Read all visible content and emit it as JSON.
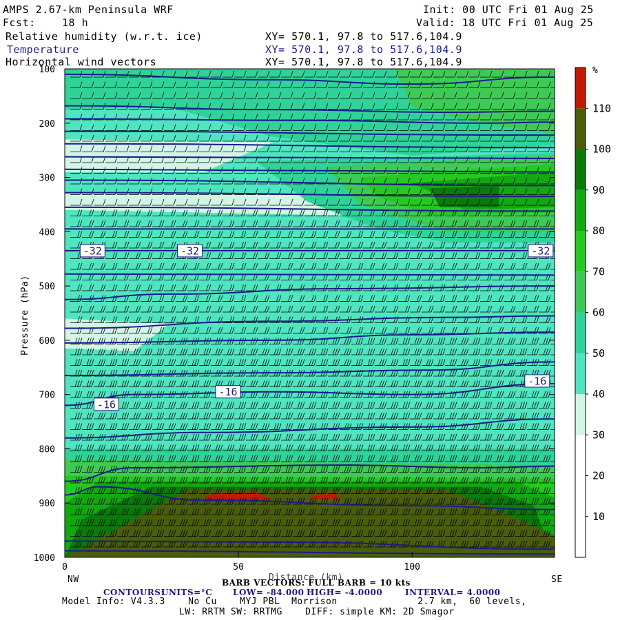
{
  "header": {
    "title": "AMPS 2.67-km Peninsula WRF",
    "init": "Init: 00 UTC Fri 01 Aug 25",
    "fcst_label": "Fcst:",
    "fcst_value": "18 h",
    "valid": "Valid: 18 UTC Fri 01 Aug 25"
  },
  "fields": [
    {
      "name": "Relative humidity (w.r.t. ice)",
      "xy": "XY= 570.1, 97.8 to 517.6,104.9"
    },
    {
      "name": "Temperature",
      "xy": "XY= 570.1, 97.8 to 517.6,104.9"
    },
    {
      "name": "Horizontal wind vectors",
      "xy": "XY= 570.1, 97.8 to 517.6,104.9"
    }
  ],
  "footer": {
    "barb_note": "BARB VECTORS: FULL BARB = 10 kts",
    "distance_label": "Distance (km)",
    "contours_label": "CONTOURS:",
    "units": "UNITS=°C",
    "low": "LOW= -84.000",
    "high": "HIGH= -4.0000",
    "interval": "INTERVAL= 4.0000",
    "model_info_1": "Model Info: V4.3.3    No Cu    MYJ PBL  Morrison              2.7 km,  60 levels,",
    "model_info_2": "LW: RRTM SW: RRTMG    DIFF: simple KM: 2D Smagor"
  },
  "colors": {
    "temperature_contour": "#1a1a8c",
    "rh_bins": [
      "#ffffff",
      "#ffffff",
      "#ffffff",
      "#d2f5e6",
      "#4fe5c0",
      "#2fd39a",
      "#3ecb55",
      "#26c822",
      "#12a812",
      "#0a7a0a",
      "#4a5d0c",
      "#c21a00"
    ]
  },
  "chart_data": {
    "type": "heatmap",
    "xlabel": "Distance (km)",
    "ylabel": "Pressure (hPa)",
    "x_ticks": [
      0,
      50,
      100
    ],
    "x_end_labels": {
      "left": "NW",
      "right": "SE"
    },
    "xlim": [
      0,
      141
    ],
    "y_ticks": [
      100,
      200,
      300,
      400,
      500,
      600,
      700,
      800,
      900,
      1000
    ],
    "ylim": [
      100,
      1000
    ],
    "y_reversed": true,
    "colorbar": {
      "unit": "%",
      "levels": [
        0,
        10,
        20,
        30,
        40,
        50,
        60,
        70,
        80,
        90,
        100,
        110,
        120
      ],
      "tick_labels": [
        "10",
        "20",
        "30",
        "40",
        "50",
        "60",
        "70",
        "80",
        "90",
        "100",
        "110"
      ]
    },
    "rh_regions": [
      {
        "level": 40,
        "points": [
          [
            0,
            100
          ],
          [
            141,
            100
          ],
          [
            141,
            950
          ],
          [
            0,
            950
          ]
        ]
      },
      {
        "level": 30,
        "points": [
          [
            0,
            230
          ],
          [
            60,
            235
          ],
          [
            40,
            290
          ],
          [
            0,
            290
          ]
        ]
      },
      {
        "level": 30,
        "points": [
          [
            0,
            330
          ],
          [
            141,
            330
          ],
          [
            141,
            375
          ],
          [
            80,
            370
          ],
          [
            0,
            360
          ]
        ]
      },
      {
        "level": 50,
        "points": [
          [
            0,
            100
          ],
          [
            141,
            100
          ],
          [
            141,
            240
          ],
          [
            100,
            260
          ],
          [
            60,
            225
          ],
          [
            30,
            170
          ],
          [
            0,
            175
          ]
        ]
      },
      {
        "level": 60,
        "points": [
          [
            95,
            100
          ],
          [
            141,
            100
          ],
          [
            141,
            220
          ],
          [
            120,
            200
          ],
          [
            100,
            170
          ]
        ]
      },
      {
        "level": 50,
        "points": [
          [
            55,
            270
          ],
          [
            141,
            255
          ],
          [
            141,
            420
          ],
          [
            110,
            420
          ],
          [
            90,
            395
          ],
          [
            70,
            345
          ]
        ]
      },
      {
        "level": 60,
        "points": [
          [
            75,
            280
          ],
          [
            141,
            260
          ],
          [
            141,
            400
          ],
          [
            110,
            400
          ],
          [
            85,
            350
          ]
        ]
      },
      {
        "level": 70,
        "points": [
          [
            85,
            300
          ],
          [
            141,
            275
          ],
          [
            141,
            365
          ],
          [
            105,
            370
          ],
          [
            90,
            335
          ]
        ]
      },
      {
        "level": 80,
        "points": [
          [
            100,
            310
          ],
          [
            141,
            290
          ],
          [
            141,
            355
          ],
          [
            115,
            360
          ]
        ]
      },
      {
        "level": 90,
        "points": [
          [
            105,
            320
          ],
          [
            125,
            315
          ],
          [
            125,
            355
          ],
          [
            108,
            355
          ]
        ]
      },
      {
        "level": 50,
        "points": [
          [
            0,
            780
          ],
          [
            141,
            790
          ],
          [
            141,
            1000
          ],
          [
            0,
            1000
          ]
        ]
      },
      {
        "level": 40,
        "points": [
          [
            0,
            740
          ],
          [
            60,
            745
          ],
          [
            80,
            700
          ],
          [
            90,
            760
          ],
          [
            141,
            765
          ],
          [
            141,
            800
          ],
          [
            0,
            800
          ]
        ]
      },
      {
        "level": 30,
        "points": [
          [
            0,
            560
          ],
          [
            30,
            570
          ],
          [
            20,
            620
          ],
          [
            0,
            615
          ]
        ]
      },
      {
        "level": 60,
        "points": [
          [
            0,
            820
          ],
          [
            141,
            830
          ],
          [
            141,
            1000
          ],
          [
            0,
            1000
          ]
        ]
      },
      {
        "level": 70,
        "points": [
          [
            0,
            850
          ],
          [
            141,
            855
          ],
          [
            141,
            1000
          ],
          [
            0,
            1000
          ]
        ]
      },
      {
        "level": 80,
        "points": [
          [
            10,
            860
          ],
          [
            130,
            860
          ],
          [
            141,
            890
          ],
          [
            141,
            1000
          ],
          [
            0,
            1000
          ],
          [
            0,
            900
          ]
        ]
      },
      {
        "level": 90,
        "points": [
          [
            25,
            870
          ],
          [
            120,
            870
          ],
          [
            135,
            905
          ],
          [
            141,
            1000
          ],
          [
            0,
            1000
          ],
          [
            5,
            930
          ]
        ]
      },
      {
        "level": 100,
        "points": [
          [
            35,
            875
          ],
          [
            110,
            875
          ],
          [
            125,
            915
          ],
          [
            141,
            960
          ],
          [
            141,
            1000
          ],
          [
            0,
            1000
          ],
          [
            20,
            930
          ]
        ]
      },
      {
        "level": 110,
        "points": [
          [
            40,
            885
          ],
          [
            55,
            880
          ],
          [
            60,
            895
          ],
          [
            42,
            895
          ]
        ]
      },
      {
        "level": 110,
        "points": [
          [
            71,
            885
          ],
          [
            78,
            883
          ],
          [
            79,
            892
          ],
          [
            71,
            892
          ]
        ]
      }
    ],
    "temperature_contours": [
      {
        "points": [
          [
            0,
            110
          ],
          [
            60,
            120
          ],
          [
            100,
            128
          ],
          [
            141,
            115
          ]
        ]
      },
      {
        "points": [
          [
            0,
            168
          ],
          [
            60,
            175
          ],
          [
            110,
            180
          ],
          [
            141,
            178
          ]
        ]
      },
      {
        "points": [
          [
            0,
            192
          ],
          [
            70,
            195
          ],
          [
            120,
            200
          ],
          [
            141,
            198
          ]
        ]
      },
      {
        "points": [
          [
            0,
            215
          ],
          [
            141,
            222
          ]
        ]
      },
      {
        "points": [
          [
            0,
            238
          ],
          [
            141,
            245
          ]
        ]
      },
      {
        "points": [
          [
            0,
            262
          ],
          [
            141,
            265
          ]
        ]
      },
      {
        "points": [
          [
            0,
            285
          ],
          [
            141,
            290
          ]
        ]
      },
      {
        "points": [
          [
            0,
            305
          ],
          [
            141,
            315
          ]
        ]
      },
      {
        "points": [
          [
            0,
            328
          ],
          [
            141,
            335
          ]
        ]
      },
      {
        "points": [
          [
            0,
            355
          ],
          [
            141,
            362
          ]
        ]
      },
      {
        "points": [
          [
            0,
            395
          ],
          [
            141,
            395
          ]
        ]
      },
      {
        "points": [
          [
            0,
            435
          ],
          [
            141,
            435
          ]
        ],
        "label": "-32",
        "label_at": [
          [
            8,
            435
          ],
          [
            36,
            435
          ],
          [
            137,
            435
          ]
        ]
      },
      {
        "points": [
          [
            0,
            478
          ],
          [
            141,
            480
          ]
        ]
      },
      {
        "points": [
          [
            0,
            525
          ],
          [
            30,
            515
          ],
          [
            80,
            505
          ],
          [
            141,
            500
          ]
        ]
      },
      {
        "points": [
          [
            0,
            578
          ],
          [
            60,
            565
          ],
          [
            110,
            558
          ],
          [
            141,
            555
          ]
        ]
      },
      {
        "points": [
          [
            0,
            605
          ],
          [
            60,
            600
          ],
          [
            100,
            590
          ],
          [
            141,
            585
          ]
        ]
      },
      {
        "points": [
          [
            0,
            665
          ],
          [
            60,
            660
          ],
          [
            105,
            655
          ],
          [
            141,
            640
          ]
        ]
      },
      {
        "points": [
          [
            0,
            720
          ],
          [
            20,
            700
          ],
          [
            60,
            695
          ],
          [
            100,
            700
          ],
          [
            141,
            680
          ]
        ],
        "label": "-16",
        "label_at": [
          [
            12,
            718
          ],
          [
            47,
            695
          ],
          [
            136,
            675
          ]
        ]
      },
      {
        "points": [
          [
            0,
            780
          ],
          [
            40,
            770
          ],
          [
            100,
            760
          ],
          [
            141,
            745
          ]
        ]
      },
      {
        "points": [
          [
            0,
            860
          ],
          [
            20,
            835
          ],
          [
            80,
            830
          ],
          [
            120,
            835
          ],
          [
            141,
            832
          ]
        ]
      },
      {
        "points": [
          [
            0,
            885
          ],
          [
            10,
            870
          ],
          [
            40,
            895
          ],
          [
            100,
            905
          ],
          [
            141,
            912
          ]
        ]
      },
      {
        "points": [
          [
            0,
            970
          ],
          [
            60,
            972
          ],
          [
            141,
            985
          ]
        ]
      },
      {
        "points": [
          [
            0,
            988
          ],
          [
            141,
            994
          ]
        ]
      }
    ]
  }
}
